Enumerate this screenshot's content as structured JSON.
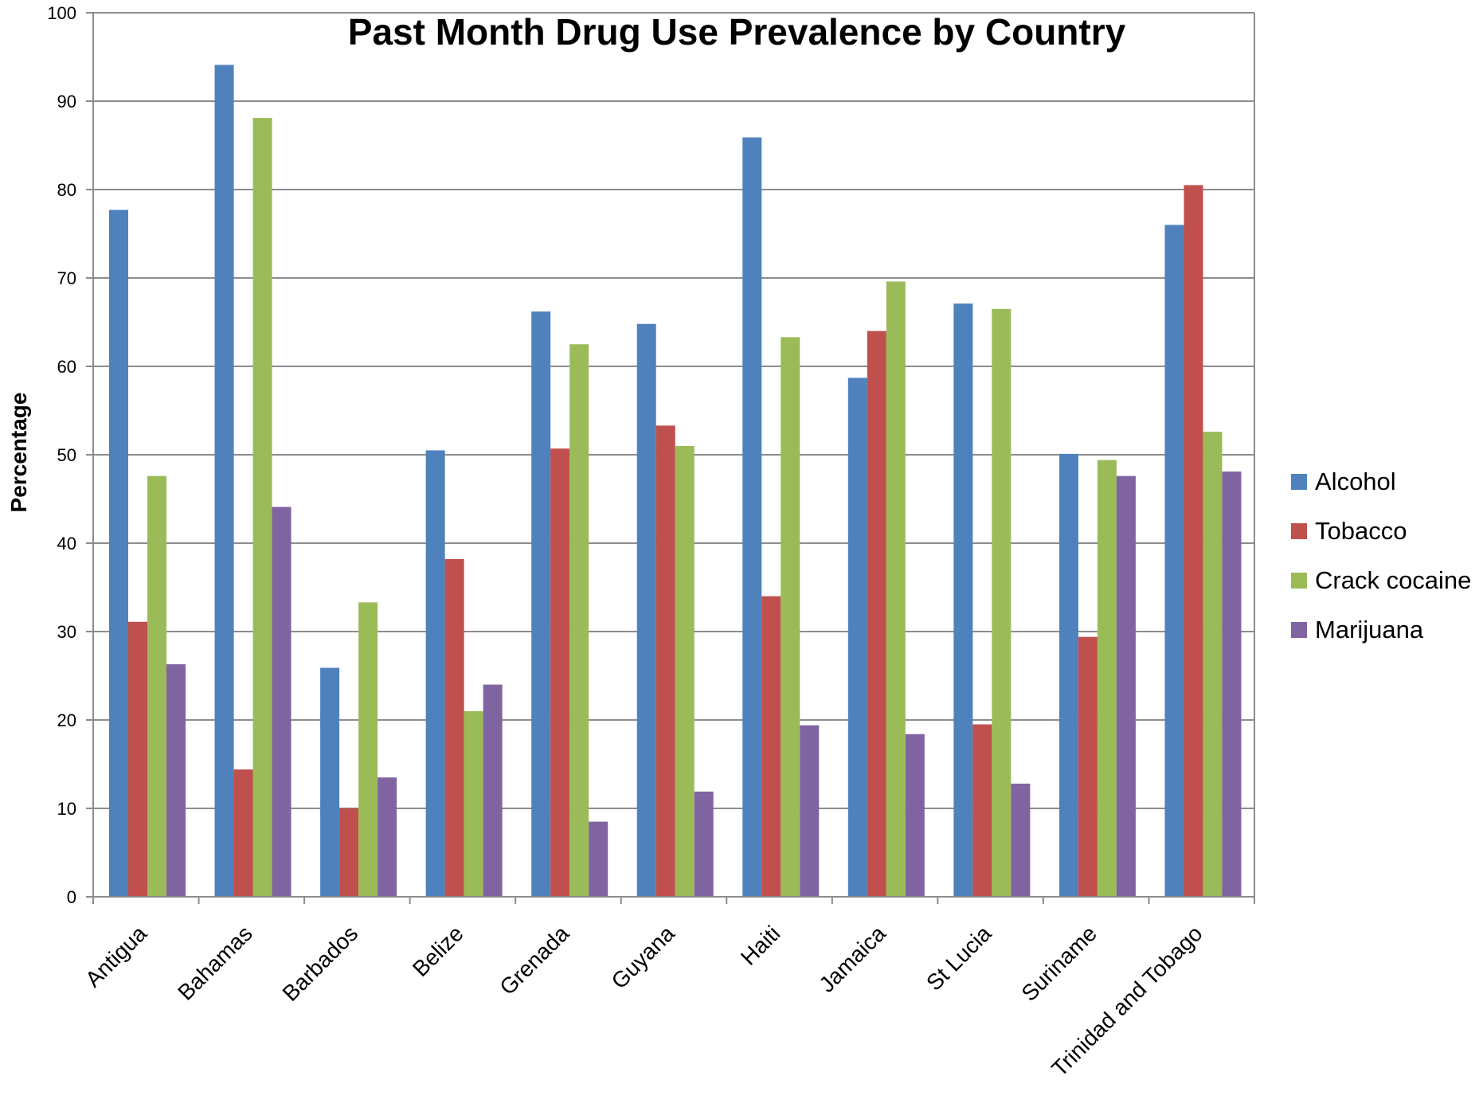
{
  "chart_data": {
    "type": "bar",
    "title": "Past Month Drug Use Prevalence by Country",
    "xlabel": "",
    "ylabel": "Percentage",
    "ylim": [
      0,
      100
    ],
    "yticks": [
      0,
      10,
      20,
      30,
      40,
      50,
      60,
      70,
      80,
      90,
      100
    ],
    "grid": true,
    "legend_position": "right",
    "categories": [
      "Antigua",
      "Bahamas",
      "Barbados",
      "Belize",
      "Grenada",
      "Guyana",
      "Haiti",
      "Jamaica",
      "St Lucia",
      "Suriname",
      "Trinidad and Tobago"
    ],
    "series": [
      {
        "name": "Alcohol",
        "color": "#4F81BD",
        "values": [
          77.7,
          94.1,
          25.9,
          50.5,
          66.2,
          64.8,
          85.9,
          58.7,
          67.1,
          50.1,
          76.0
        ]
      },
      {
        "name": "Tobacco",
        "color": "#C0504D",
        "values": [
          31.1,
          14.4,
          10.0,
          38.2,
          50.7,
          53.3,
          34.0,
          64.0,
          19.5,
          29.4,
          80.5
        ]
      },
      {
        "name": "Crack cocaine",
        "color": "#9BBB59",
        "values": [
          47.6,
          88.1,
          33.3,
          21.0,
          62.5,
          51.0,
          63.3,
          69.6,
          66.5,
          49.4,
          52.6
        ]
      },
      {
        "name": "Marijuana",
        "color": "#8064A2",
        "values": [
          26.3,
          44.1,
          13.5,
          24.0,
          8.5,
          11.9,
          19.4,
          18.4,
          12.8,
          47.6,
          48.1
        ]
      }
    ]
  }
}
